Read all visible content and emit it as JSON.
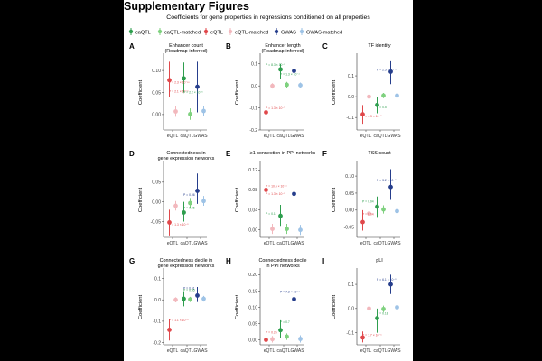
{
  "page": {
    "title": "Supplementary Figures",
    "subtitle": "Coefficients for gene properties in regressions conditioned on all properties"
  },
  "colors": {
    "caQTL": "#2e9e4e",
    "caQTL-matched": "#7fd17f",
    "eQTL": "#e0484b",
    "eQTL-matched": "#f2b8bd",
    "GWAS": "#263e8c",
    "GWAS-matched": "#9ec3e6"
  },
  "legend": {
    "items": [
      {
        "key": "caQTL",
        "label": "caQTL"
      },
      {
        "key": "caQTL-matched",
        "label": "caQTL-matched"
      },
      {
        "key": "eQTL",
        "label": "eQTL"
      },
      {
        "key": "eQTL-matched",
        "label": "eQTL-matched"
      },
      {
        "key": "GWAS",
        "label": "GWAS"
      },
      {
        "key": "GWAS-matched",
        "label": "GWAS-matched"
      }
    ]
  },
  "chart_data": [
    {
      "type": "scatter",
      "panel": "A",
      "title": [
        "Enhancer count",
        "(Roadmap-inferred)"
      ],
      "ylabel": "Coefficient",
      "categories": [
        "eQTL",
        "caQTL",
        "GWAS"
      ],
      "ylim": [
        -0.035,
        0.135
      ],
      "yticks": [
        0.0,
        0.05,
        0.1
      ],
      "ytick_labels": [
        "0.00",
        "0.05",
        "0.10"
      ],
      "points": [
        {
          "group": "eQTL",
          "category": "eQTL",
          "y": 0.078,
          "lo": 0.04,
          "hi": 0.12
        },
        {
          "group": "eQTL-matched",
          "category": "eQTL",
          "y": 0.007,
          "lo": -0.005,
          "hi": 0.02
        },
        {
          "group": "caQTL",
          "category": "caQTL",
          "y": 0.082,
          "lo": 0.05,
          "hi": 0.118
        },
        {
          "group": "caQTL-matched",
          "category": "caQTL",
          "y": 0.001,
          "lo": -0.012,
          "hi": 0.014
        },
        {
          "group": "GWAS",
          "category": "GWAS",
          "y": 0.063,
          "lo": 0.005,
          "hi": 0.12
        },
        {
          "group": "GWAS-matched",
          "category": "GWAS",
          "y": 0.008,
          "lo": -0.003,
          "hi": 0.02
        }
      ],
      "annotations": [
        {
          "group": "eQTL",
          "text": "P = 2.3 × 10⁻¹²",
          "category": "eQTL",
          "y": 0.07
        },
        {
          "group": "eQTL",
          "text": "P = 2.1 × 10⁻⁶",
          "category": "eQTL",
          "y": 0.05
        },
        {
          "group": "caQTL",
          "text": "P = 2.2 × 10⁻⁵",
          "category": "caQTL",
          "y": 0.048
        }
      ]
    },
    {
      "type": "scatter",
      "panel": "B",
      "title": [
        "Enhancer length",
        "(Roadmap-inferred)"
      ],
      "ylabel": "Coefficient",
      "categories": [
        "eQTL",
        "caQTL",
        "GWAS"
      ],
      "ylim": [
        -0.2,
        0.14
      ],
      "yticks": [
        -0.2,
        -0.1,
        0.0,
        0.1
      ],
      "ytick_labels": [
        "-0.2",
        "-0.1",
        "0.0",
        "0.1"
      ],
      "points": [
        {
          "group": "eQTL",
          "category": "eQTL",
          "y": -0.12,
          "lo": -0.16,
          "hi": -0.085
        },
        {
          "group": "eQTL-matched",
          "category": "eQTL",
          "y": 0.0,
          "lo": -0.012,
          "hi": 0.012
        },
        {
          "group": "caQTL",
          "category": "caQTL",
          "y": 0.075,
          "lo": 0.03,
          "hi": 0.1
        },
        {
          "group": "caQTL-matched",
          "category": "caQTL",
          "y": 0.005,
          "lo": -0.008,
          "hi": 0.018
        },
        {
          "group": "GWAS",
          "category": "GWAS",
          "y": 0.068,
          "lo": 0.04,
          "hi": 0.095
        },
        {
          "group": "GWAS-matched",
          "category": "GWAS",
          "y": 0.003,
          "lo": -0.01,
          "hi": 0.015
        }
      ],
      "annotations": [
        {
          "group": "caQTL",
          "text": "P = 8.3 × 10⁻⁵",
          "category": "eQTL",
          "y": 0.09
        },
        {
          "group": "caQTL",
          "text": "P = 1.3 × 10⁻⁴",
          "category": "caQTL",
          "y": 0.048
        },
        {
          "group": "eQTL",
          "text": "P = 1.3 × 10⁻⁷",
          "category": "eQTL",
          "y": -0.105
        }
      ]
    },
    {
      "type": "scatter",
      "panel": "C",
      "title": [
        "TF identity"
      ],
      "ylabel": "Coefficient",
      "categories": [
        "eQTL",
        "caQTL",
        "GWAS"
      ],
      "ylim": [
        -0.16,
        0.2
      ],
      "yticks": [
        -0.1,
        0.0,
        0.1
      ],
      "ytick_labels": [
        "-0.1",
        "0.0",
        "0.1"
      ],
      "points": [
        {
          "group": "eQTL",
          "category": "eQTL",
          "y": -0.085,
          "lo": -0.13,
          "hi": -0.04
        },
        {
          "group": "eQTL-matched",
          "category": "eQTL",
          "y": 0.0,
          "lo": -0.012,
          "hi": 0.012
        },
        {
          "group": "caQTL",
          "category": "caQTL",
          "y": -0.04,
          "lo": -0.08,
          "hi": 0.0
        },
        {
          "group": "caQTL-matched",
          "category": "caQTL",
          "y": 0.005,
          "lo": -0.007,
          "hi": 0.018
        },
        {
          "group": "GWAS",
          "category": "GWAS",
          "y": 0.12,
          "lo": 0.06,
          "hi": 0.17
        },
        {
          "group": "GWAS-matched",
          "category": "GWAS",
          "y": 0.005,
          "lo": -0.008,
          "hi": 0.018
        }
      ],
      "annotations": [
        {
          "group": "GWAS",
          "text": "P = 2.5 × 10⁻⁴",
          "category": "caQTL",
          "y": 0.125
        },
        {
          "group": "caQTL",
          "text": "P = 0.5",
          "category": "caQTL",
          "y": -0.055
        },
        {
          "group": "eQTL",
          "text": "P = 4.3 × 10⁻⁵",
          "category": "eQTL",
          "y": -0.1
        }
      ]
    },
    {
      "type": "scatter",
      "panel": "D",
      "title": [
        "Connectedness in",
        "gene expression networks"
      ],
      "ylabel": "Coefficient",
      "categories": [
        "eQTL",
        "caQTL",
        "GWAS"
      ],
      "ylim": [
        -0.09,
        0.1
      ],
      "yticks": [
        -0.05,
        0.0,
        0.05
      ],
      "ytick_labels": [
        "-0.05",
        "0.00",
        "0.05"
      ],
      "points": [
        {
          "group": "eQTL",
          "category": "eQTL",
          "y": -0.052,
          "lo": -0.085,
          "hi": -0.02
        },
        {
          "group": "eQTL-matched",
          "category": "eQTL",
          "y": -0.01,
          "lo": -0.022,
          "hi": 0.002
        },
        {
          "group": "caQTL",
          "category": "caQTL",
          "y": -0.027,
          "lo": -0.05,
          "hi": 0.0
        },
        {
          "group": "caQTL-matched",
          "category": "caQTL",
          "y": -0.003,
          "lo": -0.015,
          "hi": 0.01
        },
        {
          "group": "GWAS",
          "category": "GWAS",
          "y": 0.028,
          "lo": -0.005,
          "hi": 0.072
        },
        {
          "group": "GWAS-matched",
          "category": "GWAS",
          "y": 0.002,
          "lo": -0.01,
          "hi": 0.015
        }
      ],
      "annotations": [
        {
          "group": "GWAS",
          "text": "P = 0.06",
          "category": "caQTL",
          "y": 0.015
        },
        {
          "group": "caQTL",
          "text": "P = 0.06",
          "category": "caQTL",
          "y": -0.018
        },
        {
          "group": "eQTL",
          "text": "P = 1.3 × 10⁻⁵",
          "category": "eQTL",
          "y": -0.06
        }
      ]
    },
    {
      "type": "scatter",
      "panel": "E",
      "title": [
        "≥1 connection in PPI networks"
      ],
      "ylabel": "Coefficient",
      "categories": [
        "eQTL",
        "caQTL",
        "GWAS"
      ],
      "ylim": [
        -0.015,
        0.135
      ],
      "yticks": [
        0.0,
        0.04,
        0.08,
        0.12
      ],
      "ytick_labels": [
        "0.00",
        "0.04",
        "0.08",
        "0.12"
      ],
      "points": [
        {
          "group": "eQTL",
          "category": "eQTL",
          "y": 0.08,
          "lo": 0.04,
          "hi": 0.115
        },
        {
          "group": "eQTL-matched",
          "category": "eQTL",
          "y": 0.002,
          "lo": -0.008,
          "hi": 0.012
        },
        {
          "group": "caQTL",
          "category": "caQTL",
          "y": 0.028,
          "lo": 0.008,
          "hi": 0.05
        },
        {
          "group": "caQTL-matched",
          "category": "caQTL",
          "y": 0.002,
          "lo": -0.008,
          "hi": 0.012
        },
        {
          "group": "GWAS",
          "category": "GWAS",
          "y": 0.072,
          "lo": 0.02,
          "hi": 0.11
        },
        {
          "group": "GWAS-matched",
          "category": "GWAS",
          "y": 0.0,
          "lo": -0.01,
          "hi": 0.01
        }
      ],
      "annotations": [
        {
          "group": "eQTL",
          "text": "P = 10.6 × 10⁻⁴",
          "category": "eQTL",
          "y": 0.085
        },
        {
          "group": "eQTL",
          "text": "P = 1.3 × 10⁻⁵",
          "category": "eQTL",
          "y": 0.07
        },
        {
          "group": "caQTL",
          "text": "P = 0.1",
          "category": "eQTL",
          "y": 0.03
        }
      ]
    },
    {
      "type": "scatter",
      "panel": "F",
      "title": [
        "TSS count"
      ],
      "ylabel": "Coefficient",
      "categories": [
        "eQTL",
        "caQTL",
        "GWAS"
      ],
      "ylim": [
        -0.08,
        0.14
      ],
      "yticks": [
        -0.05,
        0.0,
        0.05,
        0.1
      ],
      "ytick_labels": [
        "-0.05",
        "0.00",
        "0.05",
        "0.10"
      ],
      "points": [
        {
          "group": "eQTL",
          "category": "eQTL",
          "y": -0.035,
          "lo": -0.06,
          "hi": 0.0
        },
        {
          "group": "eQTL-matched",
          "category": "eQTL",
          "y": -0.01,
          "lo": -0.02,
          "hi": 0.0
        },
        {
          "group": "caQTL",
          "category": "caQTL",
          "y": 0.01,
          "lo": -0.02,
          "hi": 0.04
        },
        {
          "group": "caQTL-matched",
          "category": "caQTL",
          "y": 0.002,
          "lo": -0.01,
          "hi": 0.014
        },
        {
          "group": "GWAS",
          "category": "GWAS",
          "y": 0.068,
          "lo": 0.03,
          "hi": 0.12
        },
        {
          "group": "GWAS-matched",
          "category": "GWAS",
          "y": -0.003,
          "lo": -0.015,
          "hi": 0.01
        }
      ],
      "annotations": [
        {
          "group": "GWAS",
          "text": "P = 3.2 × 10⁻⁵",
          "category": "caQTL",
          "y": 0.085
        },
        {
          "group": "caQTL",
          "text": "P = 0.04",
          "category": "eQTL",
          "y": 0.022
        },
        {
          "group": "eQTL",
          "text": "P = 0.04",
          "category": "eQTL",
          "y": -0.015
        }
      ]
    },
    {
      "type": "scatter",
      "panel": "G",
      "title": [
        "Connectedness decile in",
        "gene expression networks"
      ],
      "ylabel": "Coefficient",
      "categories": [
        "eQTL",
        "caQTL",
        "GWAS"
      ],
      "ylim": [
        -0.21,
        0.14
      ],
      "yticks": [
        -0.2,
        -0.1,
        0.0,
        0.1
      ],
      "ytick_labels": [
        "-0.2",
        "-0.1",
        "0.0",
        "0.1"
      ],
      "points": [
        {
          "group": "eQTL",
          "category": "eQTL",
          "y": -0.14,
          "lo": -0.19,
          "hi": -0.09
        },
        {
          "group": "eQTL-matched",
          "category": "eQTL",
          "y": 0.0,
          "lo": -0.012,
          "hi": 0.012
        },
        {
          "group": "caQTL",
          "category": "caQTL",
          "y": 0.005,
          "lo": -0.03,
          "hi": 0.04
        },
        {
          "group": "caQTL-matched",
          "category": "caQTL",
          "y": 0.002,
          "lo": -0.01,
          "hi": 0.014
        },
        {
          "group": "GWAS",
          "category": "GWAS",
          "y": 0.02,
          "lo": -0.01,
          "hi": 0.06
        },
        {
          "group": "GWAS-matched",
          "category": "GWAS",
          "y": 0.005,
          "lo": -0.008,
          "hi": 0.018
        }
      ],
      "annotations": [
        {
          "group": "GWAS",
          "text": "P = 0.61",
          "category": "caQTL",
          "y": 0.05
        },
        {
          "group": "caQTL",
          "text": "P = 0.45",
          "category": "caQTL",
          "y": 0.04
        },
        {
          "group": "eQTL",
          "text": "P = 1.1 × 10⁻⁵",
          "category": "eQTL",
          "y": -0.1
        }
      ]
    },
    {
      "type": "scatter",
      "panel": "H",
      "title": [
        "Connectedness decile",
        "in PPI networks"
      ],
      "ylabel": "Coefficient",
      "categories": [
        "eQTL",
        "caQTL",
        "GWAS"
      ],
      "ylim": [
        -0.015,
        0.215
      ],
      "yticks": [
        0.0,
        0.05,
        0.1,
        0.15,
        0.2
      ],
      "ytick_labels": [
        "0.00",
        "0.05",
        "0.10",
        "0.15",
        "0.20"
      ],
      "points": [
        {
          "group": "eQTL",
          "category": "eQTL",
          "y": 0.0,
          "lo": -0.01,
          "hi": 0.015
        },
        {
          "group": "eQTL-matched",
          "category": "eQTL",
          "y": 0.002,
          "lo": -0.008,
          "hi": 0.012
        },
        {
          "group": "caQTL",
          "category": "caQTL",
          "y": 0.03,
          "lo": 0.005,
          "hi": 0.06
        },
        {
          "group": "caQTL-matched",
          "category": "caQTL",
          "y": 0.01,
          "lo": 0.0,
          "hi": 0.02
        },
        {
          "group": "GWAS",
          "category": "GWAS",
          "y": 0.125,
          "lo": 0.08,
          "hi": 0.175
        },
        {
          "group": "GWAS-matched",
          "category": "GWAS",
          "y": 0.003,
          "lo": -0.008,
          "hi": 0.014
        }
      ],
      "annotations": [
        {
          "group": "GWAS",
          "text": "P = 7.2 × 10⁻⁴",
          "category": "caQTL",
          "y": 0.145
        },
        {
          "group": "caQTL",
          "text": "P = 0.7",
          "category": "caQTL",
          "y": 0.052
        },
        {
          "group": "eQTL",
          "text": "P = 0.26",
          "category": "eQTL",
          "y": 0.02
        }
      ]
    },
    {
      "type": "scatter",
      "panel": "I",
      "title": [
        "pLI"
      ],
      "ylabel": "Coefficient",
      "categories": [
        "eQTL",
        "caQTL",
        "GWAS"
      ],
      "ylim": [
        -0.15,
        0.16
      ],
      "yticks": [
        -0.1,
        0.0,
        0.1
      ],
      "ytick_labels": [
        "-0.1",
        "0.0",
        "0.1"
      ],
      "points": [
        {
          "group": "eQTL",
          "category": "eQTL",
          "y": -0.12,
          "lo": -0.14,
          "hi": -0.095
        },
        {
          "group": "eQTL-matched",
          "category": "eQTL",
          "y": 0.0,
          "lo": -0.01,
          "hi": 0.01
        },
        {
          "group": "caQTL",
          "category": "caQTL",
          "y": -0.04,
          "lo": -0.1,
          "hi": 0.0
        },
        {
          "group": "caQTL-matched",
          "category": "caQTL",
          "y": -0.002,
          "lo": -0.015,
          "hi": 0.012
        },
        {
          "group": "GWAS",
          "category": "GWAS",
          "y": 0.1,
          "lo": 0.06,
          "hi": 0.14
        },
        {
          "group": "GWAS-matched",
          "category": "GWAS",
          "y": 0.005,
          "lo": -0.008,
          "hi": 0.018
        }
      ],
      "annotations": [
        {
          "group": "GWAS",
          "text": "P = 6.1 × 10⁻⁵",
          "category": "caQTL",
          "y": 0.115
        },
        {
          "group": "caQTL",
          "text": "P = 0.18",
          "category": "caQTL",
          "y": -0.025
        },
        {
          "group": "eQTL",
          "text": "P = 1.7 × 10⁻⁶",
          "category": "eQTL",
          "y": -0.115
        }
      ]
    }
  ]
}
